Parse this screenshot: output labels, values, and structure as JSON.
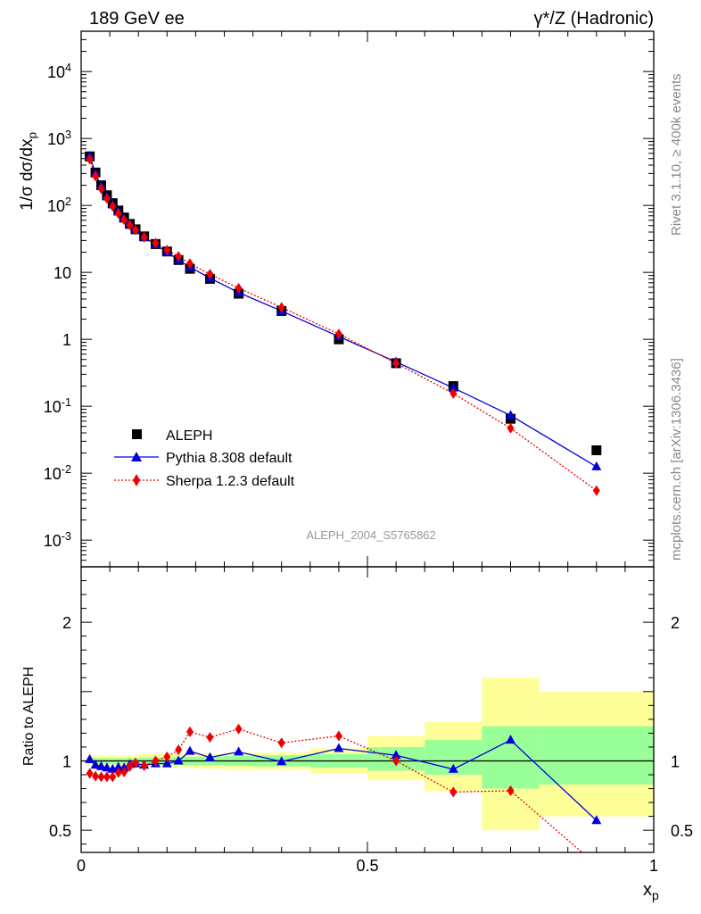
{
  "header": {
    "left_title": "189 GeV ee",
    "right_title": "γ*/Z (Hadronic)"
  },
  "side_labels": {
    "rivet": "Rivet 3.1.10, ≥ 400k events",
    "mcplots": "mcplots.cern.ch [arXiv:1306.3436]"
  },
  "analysis_id": "ALEPH_2004_S5765862",
  "colors": {
    "data": "#000000",
    "pythia": "#0000dd",
    "sherpa": "#ee0000",
    "band_inner": "#99ff99",
    "band_outer": "#ffff99",
    "frame": "#000000"
  },
  "chart_data": [
    {
      "type": "scatter",
      "panel": "main",
      "ylabel": "1/σ dσ/dx_p",
      "yscale": "log",
      "xlim": [
        0,
        1
      ],
      "ylim": [
        0.0004,
        40000
      ],
      "y_tick_labels": [
        "10^-3",
        "10^-2",
        "10^-1",
        "1",
        "10",
        "10^2",
        "10^3",
        "10^4"
      ],
      "legend": {
        "placement": "lower-left",
        "entries": [
          "ALEPH",
          "Pythia 8.308 default",
          "Sherpa 1.2.3 default"
        ]
      },
      "series": [
        {
          "name": "ALEPH",
          "style": "square",
          "x": [
            0.015,
            0.025,
            0.035,
            0.045,
            0.055,
            0.065,
            0.075,
            0.085,
            0.095,
            0.11,
            0.13,
            0.15,
            0.17,
            0.19,
            0.225,
            0.275,
            0.35,
            0.45,
            0.55,
            0.65,
            0.75,
            0.9
          ],
          "y": [
            540,
            310,
            200,
            142,
            108,
            84,
            66,
            53,
            44,
            34.5,
            26.5,
            20.5,
            15.3,
            11.3,
            8.0,
            4.8,
            2.65,
            1.0,
            0.44,
            0.2,
            0.065,
            0.022
          ]
        },
        {
          "name": "Pythia 8.308 default",
          "style": "triangle-line",
          "x": [
            0.015,
            0.025,
            0.035,
            0.045,
            0.055,
            0.065,
            0.075,
            0.085,
            0.095,
            0.11,
            0.13,
            0.15,
            0.17,
            0.19,
            0.225,
            0.275,
            0.35,
            0.45,
            0.55,
            0.65,
            0.75,
            0.9
          ],
          "y": [
            545,
            300,
            193,
            135,
            102,
            80,
            63,
            52,
            43,
            33.5,
            26,
            20,
            15.3,
            12,
            8.2,
            5.0,
            2.65,
            1.1,
            0.46,
            0.188,
            0.073,
            0.0125
          ]
        },
        {
          "name": "Sherpa 1.2.3 default",
          "style": "diamond-dotted",
          "x": [
            0.015,
            0.025,
            0.035,
            0.045,
            0.055,
            0.065,
            0.075,
            0.085,
            0.095,
            0.11,
            0.13,
            0.15,
            0.17,
            0.19,
            0.225,
            0.275,
            0.35,
            0.45,
            0.55,
            0.65,
            0.75,
            0.9
          ],
          "y": [
            490,
            275,
            178,
            127,
            97,
            76,
            61,
            51,
            43,
            33.5,
            27.5,
            21.5,
            17.3,
            13.5,
            9.4,
            5.8,
            3.0,
            1.2,
            0.44,
            0.155,
            0.047,
            0.0055
          ]
        }
      ]
    },
    {
      "type": "line",
      "panel": "ratio",
      "ylabel": "Ratio to ALEPH",
      "xlabel": "x_p",
      "xlim": [
        0,
        1
      ],
      "ylim": [
        0.34,
        2.4
      ],
      "x_tick_labels": [
        "0",
        "0.5",
        "1"
      ],
      "y_tick_labels": [
        "0.5",
        "1",
        "2"
      ],
      "bands": [
        {
          "x0": 0.01,
          "x1": 0.02,
          "inner": [
            0.985,
            1.015
          ],
          "outer": [
            0.97,
            1.03
          ]
        },
        {
          "x0": 0.02,
          "x1": 0.1,
          "inner": [
            0.98,
            1.02
          ],
          "outer": [
            0.965,
            1.04
          ]
        },
        {
          "x0": 0.1,
          "x1": 0.16,
          "inner": [
            0.975,
            1.025
          ],
          "outer": [
            0.955,
            1.05
          ]
        },
        {
          "x0": 0.16,
          "x1": 0.2,
          "inner": [
            0.97,
            1.03
          ],
          "outer": [
            0.95,
            1.05
          ]
        },
        {
          "x0": 0.2,
          "x1": 0.25,
          "inner": [
            0.97,
            1.03
          ],
          "outer": [
            0.945,
            1.055
          ]
        },
        {
          "x0": 0.25,
          "x1": 0.3,
          "inner": [
            0.965,
            1.035
          ],
          "outer": [
            0.94,
            1.06
          ]
        },
        {
          "x0": 0.3,
          "x1": 0.4,
          "inner": [
            0.96,
            1.04
          ],
          "outer": [
            0.94,
            1.06
          ]
        },
        {
          "x0": 0.4,
          "x1": 0.5,
          "inner": [
            0.95,
            1.05
          ],
          "outer": [
            0.91,
            1.09
          ]
        },
        {
          "x0": 0.5,
          "x1": 0.6,
          "inner": [
            0.93,
            1.1
          ],
          "outer": [
            0.86,
            1.18
          ]
        },
        {
          "x0": 0.6,
          "x1": 0.7,
          "inner": [
            0.9,
            1.15
          ],
          "outer": [
            0.78,
            1.28
          ]
        },
        {
          "x0": 0.7,
          "x1": 0.8,
          "inner": [
            0.8,
            1.25
          ],
          "outer": [
            0.5,
            1.6
          ]
        },
        {
          "x0": 0.8,
          "x1": 1.0,
          "inner": [
            0.83,
            1.25
          ],
          "outer": [
            0.6,
            1.5
          ]
        }
      ],
      "series": [
        {
          "name": "Pythia 8.308 default",
          "x": [
            0.015,
            0.025,
            0.035,
            0.045,
            0.055,
            0.065,
            0.075,
            0.085,
            0.095,
            0.11,
            0.13,
            0.15,
            0.17,
            0.19,
            0.225,
            0.275,
            0.35,
            0.45,
            0.55,
            0.65,
            0.75,
            0.9
          ],
          "y": [
            1.01,
            0.97,
            0.96,
            0.95,
            0.94,
            0.955,
            0.95,
            0.975,
            0.98,
            0.97,
            0.98,
            0.98,
            1.0,
            1.07,
            1.025,
            1.065,
            0.995,
            1.09,
            1.04,
            0.94,
            1.15,
            0.57
          ]
        },
        {
          "name": "Sherpa 1.2.3 default",
          "x": [
            0.015,
            0.025,
            0.035,
            0.045,
            0.055,
            0.065,
            0.075,
            0.085,
            0.095,
            0.11,
            0.13,
            0.15,
            0.17,
            0.19,
            0.225,
            0.275,
            0.35,
            0.45,
            0.55,
            0.65,
            0.75,
            0.9
          ],
          "y": [
            0.91,
            0.89,
            0.885,
            0.885,
            0.885,
            0.915,
            0.92,
            0.96,
            0.985,
            0.965,
            1.0,
            1.03,
            1.08,
            1.21,
            1.17,
            1.23,
            1.13,
            1.18,
            1.0,
            0.775,
            0.785,
            0.25
          ]
        }
      ]
    }
  ]
}
